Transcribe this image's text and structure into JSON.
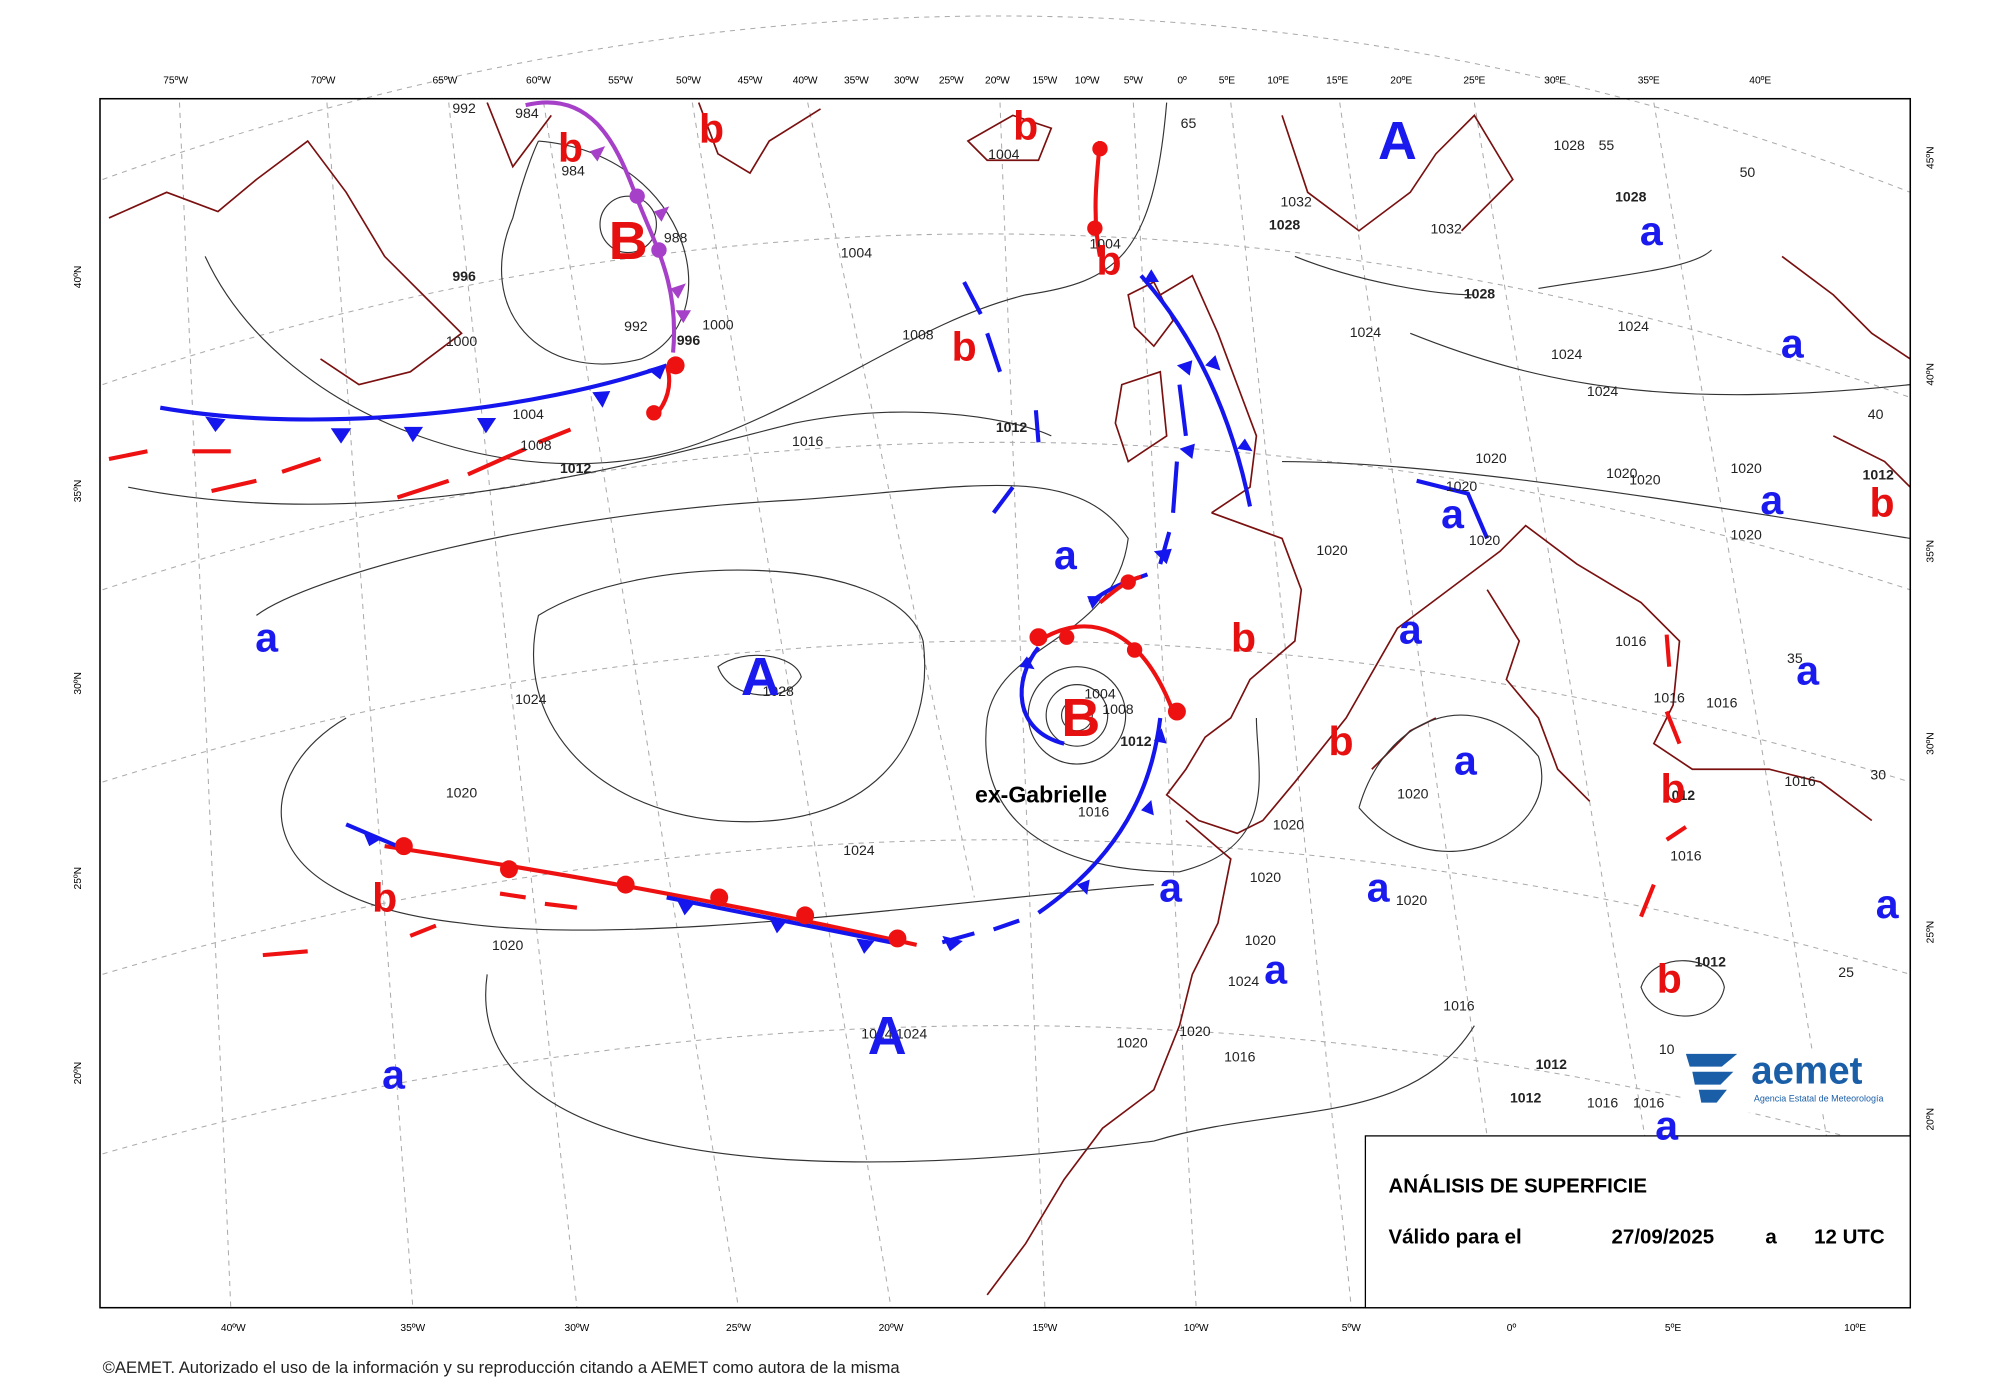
{
  "top_axis": [
    "75ºW",
    "70ºW",
    "65ºW",
    "60ºW",
    "55ºW",
    "50ºW",
    "45ºW",
    "40ºW",
    "35ºW",
    "30ºW",
    "25ºW",
    "20ºW",
    "15ºW",
    "10ºW",
    "5ºW",
    "0º",
    "5ºE",
    "10ºE",
    "15ºE",
    "20ºE",
    "25ºE",
    "30ºE",
    "35ºE",
    "40ºE"
  ],
  "bottom_axis": [
    "40ºW",
    "35ºW",
    "30ºW",
    "25ºW",
    "20ºW",
    "15ºW",
    "10ºW",
    "5ºW",
    "0º",
    "5ºE",
    "10ºE"
  ],
  "left_axis": [
    "40ºN",
    "35ºN",
    "30ºN",
    "25ºN",
    "20ºN"
  ],
  "right_axis": [
    "45ºN",
    "40ºN",
    "35ºN",
    "30ºN",
    "25ºN",
    "20ºN"
  ],
  "pressure_centers": [
    "A",
    "b",
    "B",
    "b",
    "b",
    "b",
    "b",
    "a",
    "a",
    "a",
    "a",
    "A",
    "B",
    "b",
    "a",
    "a",
    "a",
    "b",
    "a",
    "b",
    "a",
    "b",
    "a",
    "a",
    "b",
    "a",
    "b",
    "a",
    "A",
    "a",
    "a"
  ],
  "isobar_labels": [
    992,
    984,
    984,
    988,
    996,
    992,
    996,
    1000,
    1000,
    1004,
    1008,
    1012,
    1016,
    1004,
    1008,
    1012,
    1004,
    1004,
    1032,
    1028,
    1032,
    1028,
    1028,
    1028,
    1024,
    1024,
    1024,
    1024,
    1020,
    1020,
    1020,
    1020,
    1020,
    1020,
    1020,
    1020,
    1012,
    1016,
    1016,
    1016,
    1016,
    1012,
    1016,
    1012,
    1012,
    1012,
    1016,
    1016,
    1016,
    1016,
    1020,
    1020,
    1024,
    1024,
    1024,
    1020,
    1024,
    1020,
    1028,
    1004,
    1008,
    1012,
    1016,
    1020,
    1020,
    1020,
    1020,
    1020,
    1024,
    65,
    55,
    50,
    40,
    35,
    30,
    25,
    10
  ],
  "storm_name": "ex-Gabrielle",
  "info_box": {
    "title": "ANÁLISIS DE SUPERFICIE",
    "valid_prefix": "Válido para el",
    "date": "27/09/2025",
    "connector": "a",
    "time": "12 UTC"
  },
  "logo": {
    "name": "aemet",
    "subtitle": "Agencia Estatal de Meteorología"
  },
  "copyright": "©AEMET. Autorizado el uso de la información y su reproducción citando a AEMET como autora de la misma"
}
